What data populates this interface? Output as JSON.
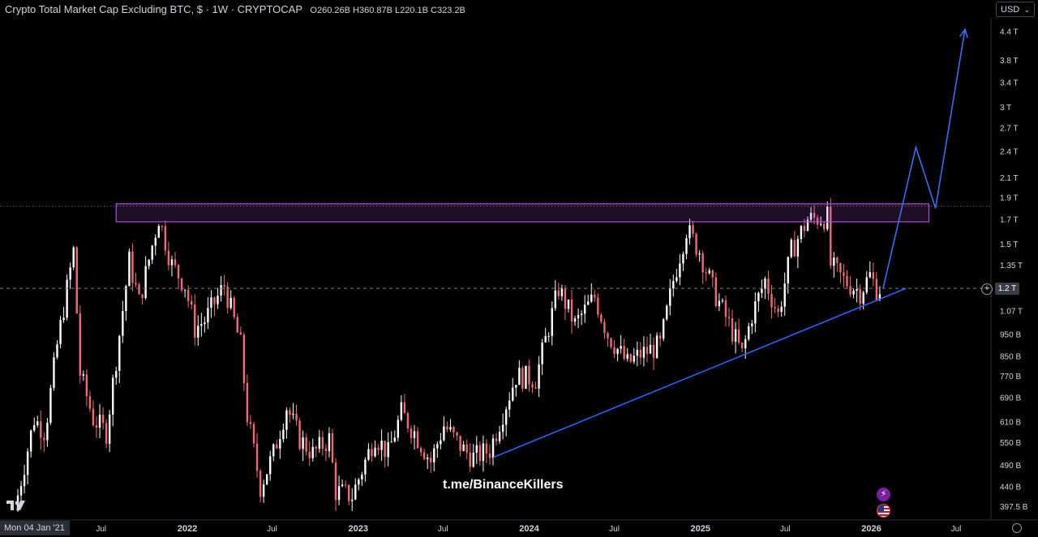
{
  "header": {
    "title": "Crypto Total Market Cap Excluding BTC, $ · 1W · CRYPTOCAP",
    "ohlc": {
      "o_label": "O",
      "o": "260.26B",
      "h_label": "H",
      "h": "360.87B",
      "l_label": "L",
      "l": "220.1B",
      "c_label": "C",
      "c": "323.2B"
    }
  },
  "currency": {
    "selected": "USD"
  },
  "watermark": "t.me/BinanceKillers",
  "date_badge": "Mon 04 Jan '21",
  "current_price_label": "1.2 T",
  "colors": {
    "background": "#000000",
    "up": "#ffffff",
    "down": "#f06b75",
    "resistance": "#b44bd8",
    "trendline": "#2962ff",
    "projection": "#3d6cf5"
  },
  "icons": [
    "tradingview-logo-icon",
    "add-alert-icon",
    "flash-icon",
    "us-flag-icon",
    "settings-icon"
  ],
  "chart_data": {
    "type": "candlestick",
    "title": "Crypto Total Market Cap Excluding BTC, $ · 1W · CRYPTOCAP",
    "y_scale": "log",
    "y_unit": "USD",
    "ylim": [
      0.38,
      4.6
    ],
    "y_ticks": [
      {
        "value": 4.4,
        "label": "4.4 T"
      },
      {
        "value": 3.8,
        "label": "3.8 T"
      },
      {
        "value": 3.4,
        "label": "3.4 T"
      },
      {
        "value": 3.0,
        "label": "3 T"
      },
      {
        "value": 2.7,
        "label": "2.7 T"
      },
      {
        "value": 2.4,
        "label": "2.4 T"
      },
      {
        "value": 2.1,
        "label": "2.1 T"
      },
      {
        "value": 1.9,
        "label": "1.9 T"
      },
      {
        "value": 1.7,
        "label": "1.7 T"
      },
      {
        "value": 1.5,
        "label": "1.5 T"
      },
      {
        "value": 1.35,
        "label": "1.35 T"
      },
      {
        "value": 1.2,
        "label": "1.2 T"
      },
      {
        "value": 1.07,
        "label": "1.07 T"
      },
      {
        "value": 0.95,
        "label": "950 B"
      },
      {
        "value": 0.85,
        "label": "850 B"
      },
      {
        "value": 0.77,
        "label": "770 B"
      },
      {
        "value": 0.69,
        "label": "690 B"
      },
      {
        "value": 0.61,
        "label": "610 B"
      },
      {
        "value": 0.55,
        "label": "550 B"
      },
      {
        "value": 0.49,
        "label": "490 B"
      },
      {
        "value": 0.44,
        "label": "440 B"
      },
      {
        "value": 0.3975,
        "label": "397.5 B"
      }
    ],
    "x_range": [
      "2021-01-04",
      "2026-08-15"
    ],
    "x_ticks": [
      {
        "date": "2021-07-01",
        "label": "Jul",
        "bold": false
      },
      {
        "date": "2022-01-01",
        "label": "2022",
        "bold": true
      },
      {
        "date": "2022-07-01",
        "label": "Jul",
        "bold": false
      },
      {
        "date": "2023-01-01",
        "label": "2023",
        "bold": true
      },
      {
        "date": "2023-07-01",
        "label": "Jul",
        "bold": false
      },
      {
        "date": "2024-01-01",
        "label": "2024",
        "bold": true
      },
      {
        "date": "2024-07-01",
        "label": "Jul",
        "bold": false
      },
      {
        "date": "2025-01-01",
        "label": "2025",
        "bold": true
      },
      {
        "date": "2025-07-01",
        "label": "Jul",
        "bold": false
      },
      {
        "date": "2026-01-01",
        "label": "2026",
        "bold": true
      },
      {
        "date": "2026-07-01",
        "label": "Jul",
        "bold": false
      }
    ],
    "price_path": [
      {
        "date": "2021-01-04",
        "value": 0.39
      },
      {
        "date": "2021-02-15",
        "value": 0.62
      },
      {
        "date": "2021-03-10",
        "value": 0.58
      },
      {
        "date": "2021-04-05",
        "value": 0.9
      },
      {
        "date": "2021-05-10",
        "value": 1.45
      },
      {
        "date": "2021-05-24",
        "value": 0.78
      },
      {
        "date": "2021-06-21",
        "value": 0.62
      },
      {
        "date": "2021-07-19",
        "value": 0.58
      },
      {
        "date": "2021-08-16",
        "value": 0.95
      },
      {
        "date": "2021-09-06",
        "value": 1.38
      },
      {
        "date": "2021-09-27",
        "value": 1.12
      },
      {
        "date": "2021-11-08",
        "value": 1.72
      },
      {
        "date": "2021-12-06",
        "value": 1.35
      },
      {
        "date": "2022-01-03",
        "value": 1.22
      },
      {
        "date": "2022-01-24",
        "value": 0.98
      },
      {
        "date": "2022-02-14",
        "value": 1.02
      },
      {
        "date": "2022-03-28",
        "value": 1.22
      },
      {
        "date": "2022-05-02",
        "value": 0.9
      },
      {
        "date": "2022-05-16",
        "value": 0.63
      },
      {
        "date": "2022-06-13",
        "value": 0.44
      },
      {
        "date": "2022-07-11",
        "value": 0.52
      },
      {
        "date": "2022-08-08",
        "value": 0.66
      },
      {
        "date": "2022-09-05",
        "value": 0.56
      },
      {
        "date": "2022-10-03",
        "value": 0.52
      },
      {
        "date": "2022-11-07",
        "value": 0.56
      },
      {
        "date": "2022-11-21",
        "value": 0.43
      },
      {
        "date": "2022-12-26",
        "value": 0.42
      },
      {
        "date": "2023-02-13",
        "value": 0.57
      },
      {
        "date": "2023-03-13",
        "value": 0.52
      },
      {
        "date": "2023-04-10",
        "value": 0.64
      },
      {
        "date": "2023-05-08",
        "value": 0.58
      },
      {
        "date": "2023-06-12",
        "value": 0.5
      },
      {
        "date": "2023-07-10",
        "value": 0.6
      },
      {
        "date": "2023-08-21",
        "value": 0.53
      },
      {
        "date": "2023-09-11",
        "value": 0.51
      },
      {
        "date": "2023-10-16",
        "value": 0.53
      },
      {
        "date": "2023-11-13",
        "value": 0.64
      },
      {
        "date": "2023-12-11",
        "value": 0.77
      },
      {
        "date": "2024-01-22",
        "value": 0.76
      },
      {
        "date": "2024-03-11",
        "value": 1.2
      },
      {
        "date": "2024-04-15",
        "value": 1.0
      },
      {
        "date": "2024-05-27",
        "value": 1.15
      },
      {
        "date": "2024-06-24",
        "value": 0.95
      },
      {
        "date": "2024-08-05",
        "value": 0.82
      },
      {
        "date": "2024-09-02",
        "value": 0.86
      },
      {
        "date": "2024-10-14",
        "value": 0.9
      },
      {
        "date": "2024-11-11",
        "value": 1.25
      },
      {
        "date": "2024-12-09",
        "value": 1.62
      },
      {
        "date": "2025-01-06",
        "value": 1.45
      },
      {
        "date": "2025-02-03",
        "value": 1.2
      },
      {
        "date": "2025-03-10",
        "value": 1.0
      },
      {
        "date": "2025-04-07",
        "value": 0.86
      },
      {
        "date": "2025-04-28",
        "value": 1.05
      },
      {
        "date": "2025-05-26",
        "value": 1.25
      },
      {
        "date": "2025-06-23",
        "value": 1.05
      },
      {
        "date": "2025-07-21",
        "value": 1.45
      },
      {
        "date": "2025-08-25",
        "value": 1.7
      },
      {
        "date": "2025-10-06",
        "value": 1.72
      },
      {
        "date": "2025-10-13",
        "value": 1.35
      },
      {
        "date": "2025-11-10",
        "value": 1.25
      },
      {
        "date": "2025-12-15",
        "value": 1.18
      },
      {
        "date": "2026-01-05",
        "value": 1.28
      },
      {
        "date": "2026-01-19",
        "value": 1.2
      }
    ],
    "resistance_zone": {
      "date_start": "2021-08-02",
      "date_end": "2026-05-04",
      "low": 1.68,
      "high": 1.84
    },
    "horizontal_levels": [
      {
        "value": 1.82,
        "style": "dotted"
      },
      {
        "value": 1.2,
        "style": "dashed"
      }
    ],
    "trendline": [
      {
        "date": "2023-10-16",
        "value": 0.51
      },
      {
        "date": "2026-03-16",
        "value": 1.2
      }
    ],
    "projection": [
      {
        "date": "2026-01-26",
        "value": 1.2
      },
      {
        "date": "2026-04-06",
        "value": 2.45
      },
      {
        "date": "2026-05-18",
        "value": 1.8
      },
      {
        "date": "2026-07-20",
        "value": 4.45
      }
    ]
  }
}
